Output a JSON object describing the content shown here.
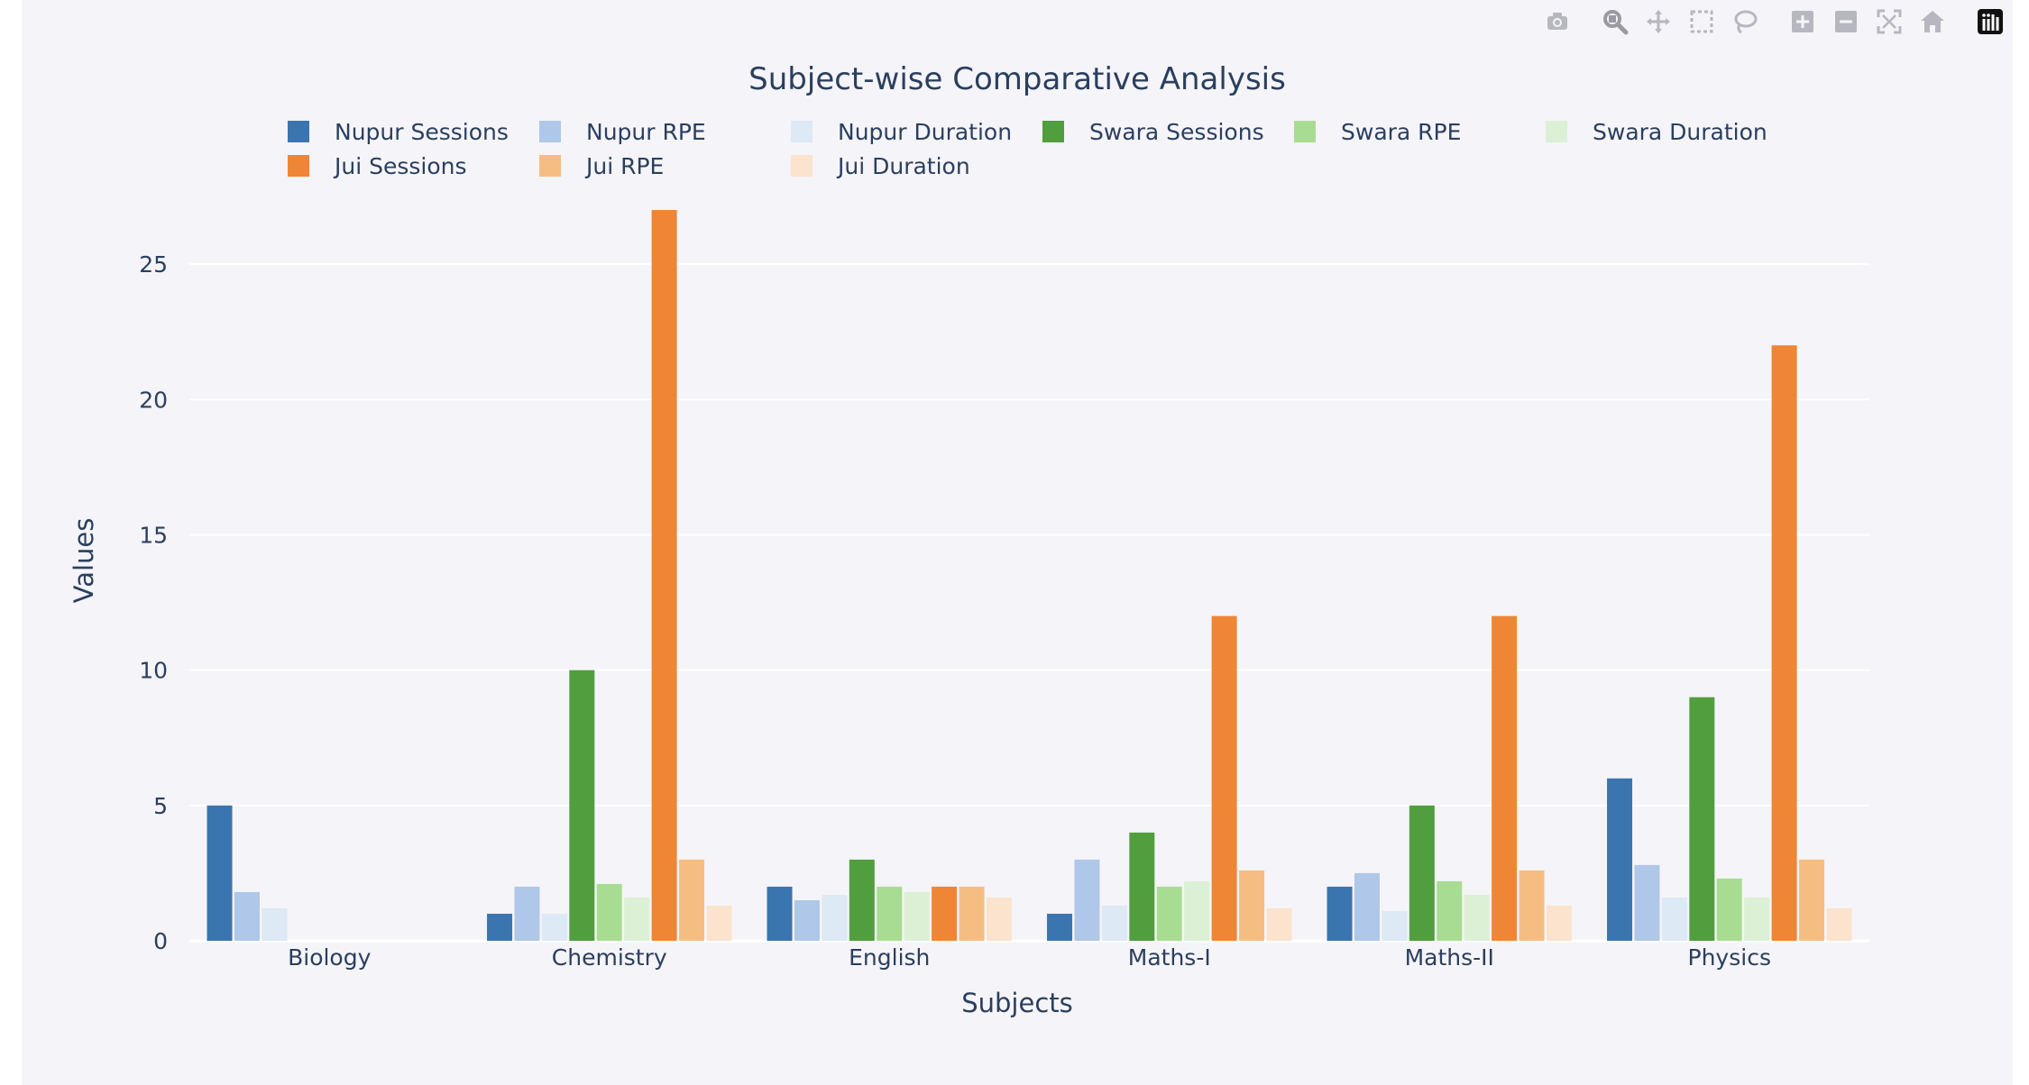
{
  "modebar": {
    "buttons": [
      {
        "name": "camera-icon",
        "group": 1
      },
      {
        "name": "zoom-icon",
        "group": 2,
        "active": true
      },
      {
        "name": "pan-icon",
        "group": 2
      },
      {
        "name": "box-select-icon",
        "group": 2
      },
      {
        "name": "lasso-select-icon",
        "group": 2
      },
      {
        "name": "zoom-in-icon",
        "group": 3
      },
      {
        "name": "zoom-out-icon",
        "group": 3
      },
      {
        "name": "autoscale-icon",
        "group": 3
      },
      {
        "name": "reset-axes-icon",
        "group": 3
      },
      {
        "name": "plotly-logo-icon",
        "group": 4
      }
    ]
  },
  "colors": {
    "background": "#f5f4f8",
    "grid": "#ffffff",
    "text": "#2a3f5f"
  },
  "chart_data": {
    "type": "bar",
    "title": "Subject-wise Comparative Analysis",
    "xlabel": "Subjects",
    "ylabel": "Values",
    "ylim": [
      0,
      27.7
    ],
    "yticks": [
      0,
      5,
      10,
      15,
      20,
      25
    ],
    "grid": true,
    "legend_position": "top",
    "categories": [
      "Biology",
      "Chemistry",
      "English",
      "Maths-I",
      "Maths-II",
      "Physics"
    ],
    "series": [
      {
        "name": "Nupur Sessions",
        "color": "#3b75af",
        "values": [
          5,
          1,
          2,
          1,
          2,
          6
        ]
      },
      {
        "name": "Nupur RPE",
        "color": "#afc7e8",
        "values": [
          1.8,
          2,
          1.5,
          3,
          2.5,
          2.8
        ]
      },
      {
        "name": "Nupur Duration",
        "color": "#dde9f5",
        "values": [
          1.2,
          1,
          1.7,
          1.3,
          1.1,
          1.6
        ]
      },
      {
        "name": "Swara Sessions",
        "color": "#519e3e",
        "values": [
          0,
          10,
          3,
          4,
          5,
          9
        ]
      },
      {
        "name": "Swara RPE",
        "color": "#a8dc93",
        "values": [
          0,
          2.1,
          2,
          2,
          2.2,
          2.3
        ]
      },
      {
        "name": "Swara Duration",
        "color": "#dcf0d6",
        "values": [
          0,
          1.6,
          1.8,
          2.2,
          1.7,
          1.6
        ]
      },
      {
        "name": "Jui Sessions",
        "color": "#ef8636",
        "values": [
          0,
          27,
          2,
          12,
          12,
          22
        ]
      },
      {
        "name": "Jui RPE",
        "color": "#f6bd82",
        "values": [
          0,
          3,
          2,
          2.6,
          2.6,
          3
        ]
      },
      {
        "name": "Jui Duration",
        "color": "#fbe3cd",
        "values": [
          0,
          1.3,
          1.6,
          1.2,
          1.3,
          1.2
        ]
      }
    ]
  }
}
